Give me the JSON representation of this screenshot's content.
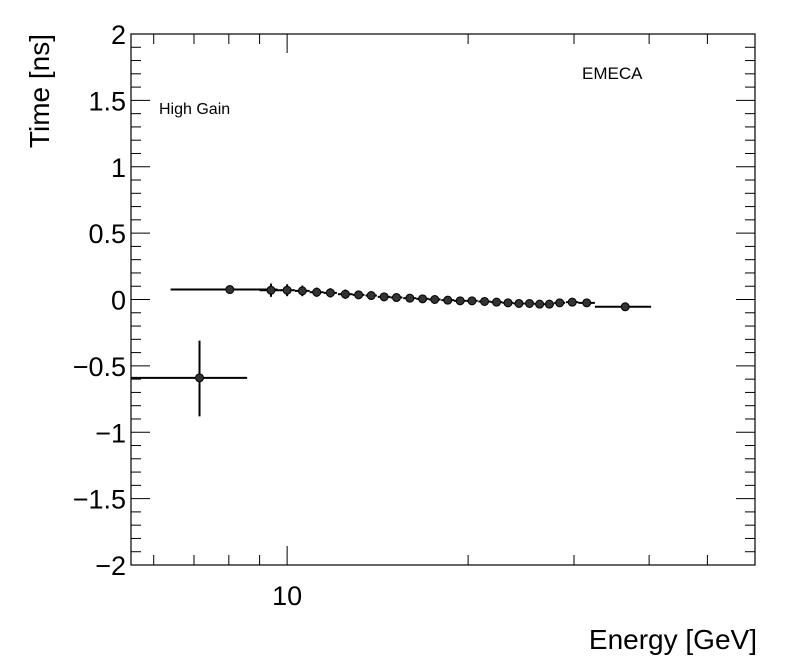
{
  "chart_data": {
    "type": "scatter",
    "title": "",
    "xlabel": "Energy [GeV]",
    "ylabel": "Time [ns]",
    "xscale": "log",
    "xlim": [
      5.5,
      60
    ],
    "ylim": [
      -2,
      2
    ],
    "y_ticks": [
      {
        "value": 2,
        "label": "2"
      },
      {
        "value": 1.5,
        "label": "1.5"
      },
      {
        "value": 1,
        "label": "1"
      },
      {
        "value": 0.5,
        "label": "0.5"
      },
      {
        "value": 0,
        "label": "0"
      },
      {
        "value": -0.5,
        "label": "−0.5"
      },
      {
        "value": -1,
        "label": "−1"
      },
      {
        "value": -1.5,
        "label": "−1.5"
      },
      {
        "value": -2,
        "label": "−2"
      }
    ],
    "x_ticks": [
      {
        "value": 10,
        "label": "10"
      }
    ],
    "grid": false,
    "annotations": {
      "gain": "High Gain",
      "detector": "EMECA"
    },
    "series": [
      {
        "name": "EMECA High Gain",
        "points": [
          {
            "x": 7.15,
            "y": -0.59,
            "xlo": 5.5,
            "xhi": 8.58,
            "ylo": -0.88,
            "yhi": -0.31
          },
          {
            "x": 8.03,
            "y": 0.075,
            "xlo": 6.4,
            "xhi": 9.64,
            "ylo": 0.06,
            "yhi": 0.09
          },
          {
            "x": 9.4,
            "y": 0.07,
            "xlo": 9.0,
            "xhi": 9.8,
            "ylo": 0.02,
            "yhi": 0.12
          },
          {
            "x": 10.0,
            "y": 0.07,
            "xlo": 9.75,
            "xhi": 10.3,
            "ylo": 0.025,
            "yhi": 0.115
          },
          {
            "x": 10.6,
            "y": 0.065,
            "xlo": 10.3,
            "xhi": 10.9,
            "ylo": 0.025,
            "yhi": 0.105
          },
          {
            "x": 11.2,
            "y": 0.055,
            "xlo": 10.9,
            "xhi": 11.5,
            "ylo": 0.02,
            "yhi": 0.09
          },
          {
            "x": 11.8,
            "y": 0.05,
            "xlo": 11.5,
            "xhi": 12.1,
            "ylo": 0.015,
            "yhi": 0.085
          },
          {
            "x": 12.5,
            "y": 0.04,
            "xlo": 12.15,
            "xhi": 12.85,
            "ylo": 0.005,
            "yhi": 0.075
          },
          {
            "x": 13.15,
            "y": 0.035,
            "xlo": 12.85,
            "xhi": 13.45,
            "ylo": 0.005,
            "yhi": 0.065
          },
          {
            "x": 13.8,
            "y": 0.03,
            "xlo": 13.5,
            "xhi": 14.1,
            "ylo": 0.005,
            "yhi": 0.055
          },
          {
            "x": 14.5,
            "y": 0.02,
            "xlo": 14.15,
            "xhi": 14.85,
            "ylo": -0.005,
            "yhi": 0.045
          },
          {
            "x": 15.2,
            "y": 0.015,
            "xlo": 14.85,
            "xhi": 15.55,
            "ylo": -0.005,
            "yhi": 0.035
          },
          {
            "x": 16.0,
            "y": 0.01,
            "xlo": 15.6,
            "xhi": 16.4,
            "ylo": -0.01,
            "yhi": 0.03
          },
          {
            "x": 16.8,
            "y": 0.005,
            "xlo": 16.4,
            "xhi": 17.2,
            "ylo": -0.012,
            "yhi": 0.022
          },
          {
            "x": 17.6,
            "y": 0.0,
            "xlo": 17.2,
            "xhi": 18.0,
            "ylo": -0.015,
            "yhi": 0.015
          },
          {
            "x": 18.5,
            "y": -0.005,
            "xlo": 18.05,
            "xhi": 18.95,
            "ylo": -0.018,
            "yhi": 0.008
          },
          {
            "x": 19.4,
            "y": -0.01,
            "xlo": 18.95,
            "xhi": 19.85,
            "ylo": -0.022,
            "yhi": 0.002
          },
          {
            "x": 20.3,
            "y": -0.01,
            "xlo": 19.85,
            "xhi": 20.75,
            "ylo": -0.022,
            "yhi": 0.002
          },
          {
            "x": 21.3,
            "y": -0.015,
            "xlo": 20.8,
            "xhi": 21.8,
            "ylo": -0.027,
            "yhi": -0.003
          },
          {
            "x": 22.3,
            "y": -0.02,
            "xlo": 21.8,
            "xhi": 22.8,
            "ylo": -0.032,
            "yhi": -0.008
          },
          {
            "x": 23.3,
            "y": -0.025,
            "xlo": 22.8,
            "xhi": 23.8,
            "ylo": -0.037,
            "yhi": -0.013
          },
          {
            "x": 24.3,
            "y": -0.03,
            "xlo": 23.8,
            "xhi": 24.8,
            "ylo": -0.042,
            "yhi": -0.018
          },
          {
            "x": 25.3,
            "y": -0.03,
            "xlo": 24.8,
            "xhi": 25.8,
            "ylo": -0.042,
            "yhi": -0.018
          },
          {
            "x": 26.3,
            "y": -0.035,
            "xlo": 25.8,
            "xhi": 26.8,
            "ylo": -0.047,
            "yhi": -0.023
          },
          {
            "x": 27.3,
            "y": -0.035,
            "xlo": 26.8,
            "xhi": 27.8,
            "ylo": -0.047,
            "yhi": -0.023
          },
          {
            "x": 28.4,
            "y": -0.025,
            "xlo": 27.8,
            "xhi": 29.0,
            "ylo": -0.04,
            "yhi": -0.01
          },
          {
            "x": 29.8,
            "y": -0.02,
            "xlo": 29.1,
            "xhi": 30.5,
            "ylo": -0.037,
            "yhi": -0.003
          },
          {
            "x": 31.5,
            "y": -0.025,
            "xlo": 30.5,
            "xhi": 32.5,
            "ylo": -0.042,
            "yhi": -0.008
          },
          {
            "x": 36.5,
            "y": -0.055,
            "xlo": 32.5,
            "xhi": 40.3,
            "ylo": -0.07,
            "yhi": -0.04
          }
        ]
      }
    ]
  }
}
